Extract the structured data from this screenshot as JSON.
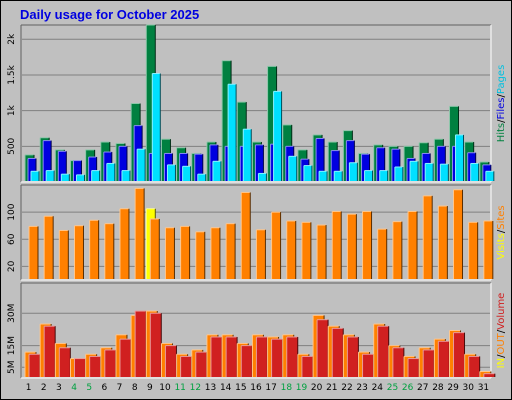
{
  "title": "Daily usage for October 2025",
  "chart_data": [
    {
      "type": "bar",
      "title": "Daily usage for October 2025",
      "categories": [
        "1",
        "2",
        "3",
        "4",
        "5",
        "6",
        "7",
        "8",
        "9",
        "10",
        "11",
        "12",
        "13",
        "14",
        "15",
        "16",
        "17",
        "18",
        "19",
        "20",
        "21",
        "22",
        "23",
        "24",
        "25",
        "26",
        "27",
        "28",
        "29",
        "30",
        "31"
      ],
      "weekend_days": [
        "4",
        "5",
        "11",
        "12",
        "18",
        "19",
        "25",
        "26"
      ],
      "y_tick_labels": [
        "500",
        "1k",
        "1.5k",
        "2k"
      ],
      "ylim": [
        0,
        2200
      ],
      "right_label": [
        "Pages",
        "/",
        "Files",
        "/",
        "Hits"
      ],
      "series": [
        {
          "name": "Hits",
          "color": "#008040",
          "values": [
            380,
            620,
            450,
            300,
            450,
            560,
            540,
            1100,
            2200,
            600,
            480,
            400,
            560,
            1700,
            1120,
            560,
            1620,
            800,
            450,
            660,
            560,
            720,
            400,
            520,
            500,
            500,
            550,
            600,
            1060,
            560,
            280
          ]
        },
        {
          "name": "Files",
          "color": "#0000e0",
          "values": [
            330,
            580,
            430,
            300,
            350,
            420,
            500,
            790,
            400,
            400,
            400,
            390,
            520,
            500,
            500,
            520,
            530,
            500,
            320,
            610,
            440,
            580,
            390,
            480,
            460,
            330,
            400,
            500,
            500,
            410,
            240
          ]
        },
        {
          "name": "Pages",
          "color": "#00e0ff",
          "values": [
            150,
            160,
            110,
            100,
            160,
            260,
            160,
            460,
            1520,
            240,
            220,
            110,
            290,
            1370,
            740,
            120,
            1270,
            360,
            230,
            150,
            150,
            270,
            160,
            160,
            210,
            290,
            260,
            250,
            660,
            260,
            150
          ]
        }
      ]
    },
    {
      "type": "bar",
      "categories": [
        "1",
        "2",
        "3",
        "4",
        "5",
        "6",
        "7",
        "8",
        "9",
        "10",
        "11",
        "12",
        "13",
        "14",
        "15",
        "16",
        "17",
        "18",
        "19",
        "20",
        "21",
        "22",
        "23",
        "24",
        "25",
        "26",
        "27",
        "28",
        "29",
        "30",
        "31"
      ],
      "y_tick_labels": [
        "20",
        "60",
        "100"
      ],
      "ylim": [
        0,
        140
      ],
      "right_label": [
        "Sites",
        "/",
        "Visits"
      ],
      "series": [
        {
          "name": "Visits",
          "color": "#ffff00",
          "values": [
            0,
            0,
            0,
            0,
            0,
            0,
            0,
            0,
            105,
            0,
            0,
            0,
            0,
            0,
            0,
            0,
            0,
            0,
            0,
            0,
            0,
            0,
            0,
            0,
            0,
            0,
            0,
            0,
            0,
            0,
            0
          ]
        },
        {
          "name": "Sites",
          "color": "#ff8000",
          "values": [
            79,
            94,
            73,
            80,
            88,
            83,
            105,
            135,
            90,
            77,
            79,
            71,
            77,
            83,
            129,
            74,
            100,
            87,
            85,
            81,
            101,
            97,
            101,
            75,
            86,
            101,
            124,
            109,
            133,
            85,
            87
          ]
        }
      ]
    },
    {
      "type": "bar",
      "categories": [
        "1",
        "2",
        "3",
        "4",
        "5",
        "6",
        "7",
        "8",
        "9",
        "10",
        "11",
        "12",
        "13",
        "14",
        "15",
        "16",
        "17",
        "18",
        "19",
        "20",
        "21",
        "22",
        "23",
        "24",
        "25",
        "26",
        "27",
        "28",
        "29",
        "30",
        "31"
      ],
      "y_tick_labels": [
        "5M",
        "15M",
        "30M"
      ],
      "ylim": [
        0,
        44
      ],
      "right_label": [
        "Volume",
        "/",
        "OUT",
        "/",
        "IN"
      ],
      "series": [
        {
          "name": "IN",
          "color": "#ff8000",
          "values": [
            12,
            25,
            16,
            9,
            11,
            14,
            20,
            29,
            31,
            16,
            11,
            13,
            20,
            20,
            16,
            20,
            19,
            20,
            11,
            29,
            24,
            20,
            12,
            25,
            15,
            10,
            14,
            18,
            22,
            11,
            3
          ]
        },
        {
          "name": "OUT",
          "color": "#d02020",
          "values": [
            11,
            24,
            14,
            9,
            10,
            13,
            18,
            31,
            30,
            15,
            10,
            12,
            19,
            19,
            15,
            19,
            18,
            19,
            10,
            27,
            23,
            19,
            11,
            24,
            14,
            9,
            13,
            17,
            21,
            10,
            2
          ]
        }
      ]
    }
  ]
}
